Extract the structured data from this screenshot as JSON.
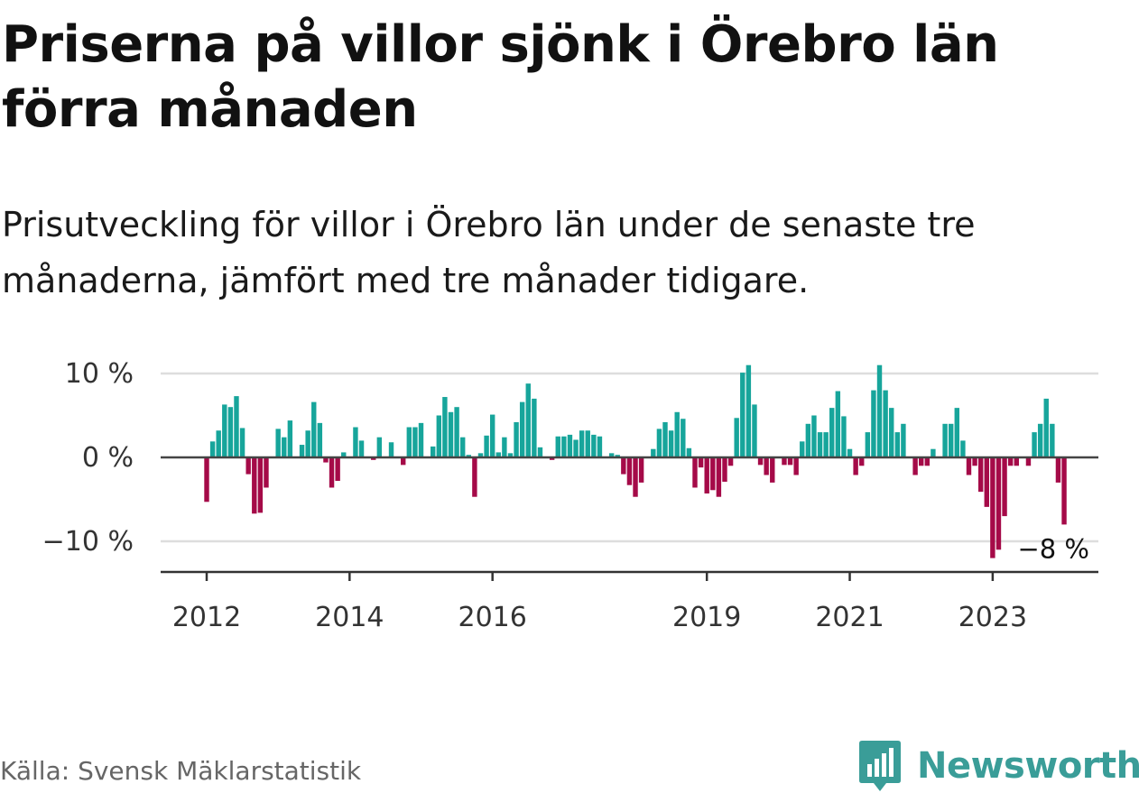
{
  "title": "Priserna på villor sjönk i Örebro län förra månaden",
  "subtitle": "Prisutveckling för villor i Örebro län under de senaste tre månaderna, jämfört med tre månader tidigare.",
  "source": "Källa: Svensk Mäklarstatistik",
  "brand": "Newsworthy",
  "colors": {
    "positive": "#17a59b",
    "negative": "#a50a48",
    "brand": "#3a9d98"
  },
  "chart_data": {
    "type": "bar",
    "ylim": [
      -13,
      10
    ],
    "yticks": [
      {
        "value": 10,
        "label": "10 %"
      },
      {
        "value": 0,
        "label": "0 %"
      },
      {
        "value": -10,
        "label": "−10 %"
      }
    ],
    "xticks": [
      {
        "value": 2012,
        "label": "2012"
      },
      {
        "value": 2014,
        "label": "2014"
      },
      {
        "value": 2016,
        "label": "2016"
      },
      {
        "value": 2019,
        "label": "2019"
      },
      {
        "value": 2021,
        "label": "2021"
      },
      {
        "value": 2023,
        "label": "2023"
      }
    ],
    "start": "2012-01",
    "last_label": "−8 %",
    "values": [
      -5.3,
      1.9,
      3.2,
      6.3,
      6.0,
      7.3,
      3.5,
      -2.0,
      -6.7,
      -6.6,
      -3.6,
      0,
      3.4,
      2.4,
      4.4,
      0,
      1.5,
      3.2,
      6.6,
      4.1,
      -0.6,
      -3.6,
      -2.8,
      0.6,
      0,
      3.6,
      2.0,
      0,
      -0.3,
      2.4,
      0,
      1.8,
      0,
      -0.9,
      3.6,
      3.6,
      4.1,
      0,
      1.3,
      5.0,
      7.2,
      5.4,
      6.0,
      2.4,
      0.3,
      -4.7,
      0.5,
      2.6,
      5.1,
      0.6,
      2.4,
      0.5,
      4.2,
      6.6,
      8.8,
      7.0,
      1.2,
      0,
      -0.3,
      2.5,
      2.5,
      2.7,
      2.1,
      3.2,
      3.2,
      2.7,
      2.5,
      0,
      0.5,
      0.3,
      -2.0,
      -3.3,
      -4.7,
      -3.0,
      0,
      1.0,
      3.4,
      4.2,
      3.2,
      5.4,
      4.6,
      1.1,
      -3.6,
      -1.2,
      -4.3,
      -3.9,
      -4.7,
      -2.9,
      -1.0,
      4.7,
      10.1,
      11.0,
      6.3,
      -0.9,
      -2.1,
      -3.0,
      0,
      -0.9,
      -0.9,
      -2.1,
      1.9,
      4.0,
      5.0,
      3.0,
      3.0,
      5.9,
      7.9,
      4.9,
      1.0,
      -2.1,
      -1.0,
      3.0,
      8.0,
      11.0,
      8.0,
      5.9,
      3.0,
      4.0,
      0,
      -2.1,
      -1.0,
      -1.0,
      1.0,
      0,
      4.0,
      4.0,
      5.9,
      2.0,
      -2.1,
      -1.0,
      -4.1,
      -5.9,
      -12.0,
      -11.0,
      -7.0,
      -1.0,
      -1.0,
      0,
      -1.0,
      3.0,
      4.0,
      7.0,
      4.0,
      -3.0,
      -8.0
    ]
  }
}
